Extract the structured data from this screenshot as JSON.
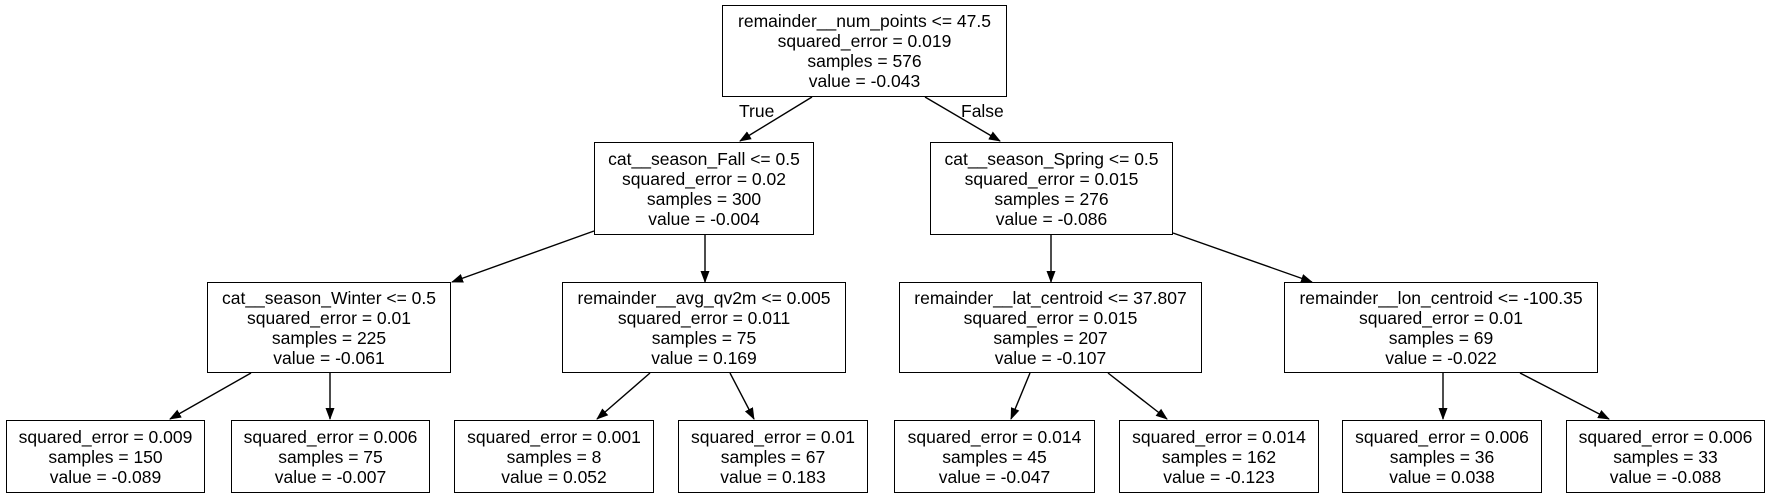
{
  "nodes": {
    "root": {
      "split": "remainder__num_points <= 47.5",
      "squared_error": "squared_error = 0.019",
      "samples": "samples = 576",
      "value": "value = -0.043"
    },
    "l": {
      "split": "cat__season_Fall <= 0.5",
      "squared_error": "squared_error = 0.02",
      "samples": "samples = 300",
      "value": "value = -0.004"
    },
    "r": {
      "split": "cat__season_Spring <= 0.5",
      "squared_error": "squared_error = 0.015",
      "samples": "samples = 276",
      "value": "value = -0.086"
    },
    "ll": {
      "split": "cat__season_Winter <= 0.5",
      "squared_error": "squared_error = 0.01",
      "samples": "samples = 225",
      "value": "value = -0.061"
    },
    "lr": {
      "split": "remainder__avg_qv2m <= 0.005",
      "squared_error": "squared_error = 0.011",
      "samples": "samples = 75",
      "value": "value = 0.169"
    },
    "rl": {
      "split": "remainder__lat_centroid <= 37.807",
      "squared_error": "squared_error = 0.015",
      "samples": "samples = 207",
      "value": "value = -0.107"
    },
    "rr": {
      "split": "remainder__lon_centroid <= -100.35",
      "squared_error": "squared_error = 0.01",
      "samples": "samples = 69",
      "value": "value = -0.022"
    },
    "lll": {
      "squared_error": "squared_error = 0.009",
      "samples": "samples = 150",
      "value": "value = -0.089"
    },
    "llr": {
      "squared_error": "squared_error = 0.006",
      "samples": "samples = 75",
      "value": "value = -0.007"
    },
    "lrl": {
      "squared_error": "squared_error = 0.001",
      "samples": "samples = 8",
      "value": "value = 0.052"
    },
    "lrr": {
      "squared_error": "squared_error = 0.01",
      "samples": "samples = 67",
      "value": "value = 0.183"
    },
    "rll": {
      "squared_error": "squared_error = 0.014",
      "samples": "samples = 45",
      "value": "value = -0.047"
    },
    "rlr": {
      "squared_error": "squared_error = 0.014",
      "samples": "samples = 162",
      "value": "value = -0.123"
    },
    "rrl": {
      "squared_error": "squared_error = 0.006",
      "samples": "samples = 36",
      "value": "value = 0.038"
    },
    "rrr": {
      "squared_error": "squared_error = 0.006",
      "samples": "samples = 33",
      "value": "value = -0.088"
    }
  },
  "edge_labels": {
    "true_label": "True",
    "false_label": "False"
  }
}
